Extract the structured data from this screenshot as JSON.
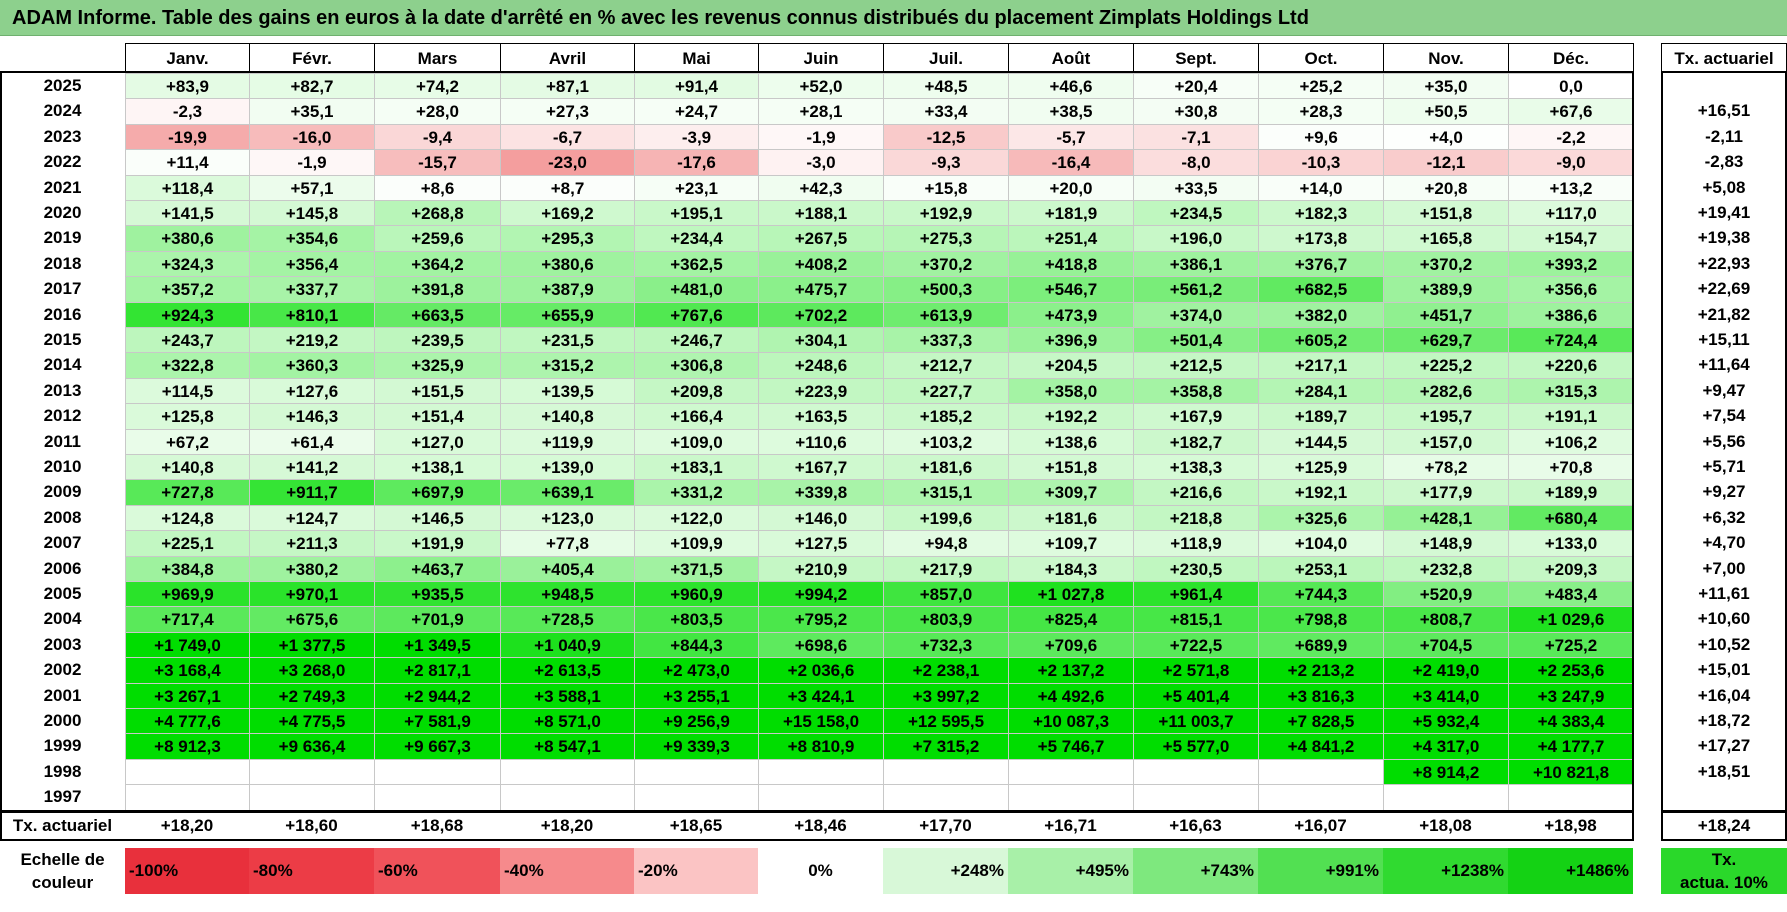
{
  "title": "ADAM Informe. Table des gains en euros à la date d'arrêté en % avec les revenus connus distribués du placement Zimplats Holdings Ltd",
  "months": [
    "Janv.",
    "Févr.",
    "Mars",
    "Avril",
    "Mai",
    "Juin",
    "Juil.",
    "Août",
    "Sept.",
    "Oct.",
    "Nov.",
    "Déc."
  ],
  "annual_header": "Tx. actuariel",
  "rows": [
    {
      "year": "2025",
      "values": [
        "+83,9",
        "+82,7",
        "+74,2",
        "+87,1",
        "+91,4",
        "+52,0",
        "+48,5",
        "+46,6",
        "+20,4",
        "+25,2",
        "+35,0",
        "0,0"
      ],
      "annual": ""
    },
    {
      "year": "2024",
      "values": [
        "-2,3",
        "+35,1",
        "+28,0",
        "+27,3",
        "+24,7",
        "+28,1",
        "+33,4",
        "+38,5",
        "+30,8",
        "+28,3",
        "+50,5",
        "+67,6"
      ],
      "annual": "+16,51"
    },
    {
      "year": "2023",
      "values": [
        "-19,9",
        "-16,0",
        "-9,4",
        "-6,7",
        "-3,9",
        "-1,9",
        "-12,5",
        "-5,7",
        "-7,1",
        "+9,6",
        "+4,0",
        "-2,2"
      ],
      "annual": "-2,11"
    },
    {
      "year": "2022",
      "values": [
        "+11,4",
        "-1,9",
        "-15,7",
        "-23,0",
        "-17,6",
        "-3,0",
        "-9,3",
        "-16,4",
        "-8,0",
        "-10,3",
        "-12,1",
        "-9,0"
      ],
      "annual": "-2,83"
    },
    {
      "year": "2021",
      "values": [
        "+118,4",
        "+57,1",
        "+8,6",
        "+8,7",
        "+23,1",
        "+42,3",
        "+15,8",
        "+20,0",
        "+33,5",
        "+14,0",
        "+20,8",
        "+13,2"
      ],
      "annual": "+5,08"
    },
    {
      "year": "2020",
      "values": [
        "+141,5",
        "+145,8",
        "+268,8",
        "+169,2",
        "+195,1",
        "+188,1",
        "+192,9",
        "+181,9",
        "+234,5",
        "+182,3",
        "+151,8",
        "+117,0"
      ],
      "annual": "+19,41"
    },
    {
      "year": "2019",
      "values": [
        "+380,6",
        "+354,6",
        "+259,6",
        "+295,3",
        "+234,4",
        "+267,5",
        "+275,3",
        "+251,4",
        "+196,0",
        "+173,8",
        "+165,8",
        "+154,7"
      ],
      "annual": "+19,38"
    },
    {
      "year": "2018",
      "values": [
        "+324,3",
        "+356,4",
        "+364,2",
        "+380,6",
        "+362,5",
        "+408,2",
        "+370,2",
        "+418,8",
        "+386,1",
        "+376,7",
        "+370,2",
        "+393,2"
      ],
      "annual": "+22,93"
    },
    {
      "year": "2017",
      "values": [
        "+357,2",
        "+337,7",
        "+391,8",
        "+387,9",
        "+481,0",
        "+475,7",
        "+500,3",
        "+546,7",
        "+561,2",
        "+682,5",
        "+389,9",
        "+356,6"
      ],
      "annual": "+22,69"
    },
    {
      "year": "2016",
      "values": [
        "+924,3",
        "+810,1",
        "+663,5",
        "+655,9",
        "+767,6",
        "+702,2",
        "+613,9",
        "+473,9",
        "+374,0",
        "+382,0",
        "+451,7",
        "+386,6"
      ],
      "annual": "+21,82"
    },
    {
      "year": "2015",
      "values": [
        "+243,7",
        "+219,2",
        "+239,5",
        "+231,5",
        "+246,7",
        "+304,1",
        "+337,3",
        "+396,9",
        "+501,4",
        "+605,2",
        "+629,7",
        "+724,4"
      ],
      "annual": "+15,11"
    },
    {
      "year": "2014",
      "values": [
        "+322,8",
        "+360,3",
        "+325,9",
        "+315,2",
        "+306,8",
        "+248,6",
        "+212,7",
        "+204,5",
        "+212,5",
        "+217,1",
        "+225,2",
        "+220,6"
      ],
      "annual": "+11,64"
    },
    {
      "year": "2013",
      "values": [
        "+114,5",
        "+127,6",
        "+151,5",
        "+139,5",
        "+209,8",
        "+223,9",
        "+227,7",
        "+358,0",
        "+358,8",
        "+284,1",
        "+282,6",
        "+315,3"
      ],
      "annual": "+9,47"
    },
    {
      "year": "2012",
      "values": [
        "+125,8",
        "+146,3",
        "+151,4",
        "+140,8",
        "+166,4",
        "+163,5",
        "+185,2",
        "+192,2",
        "+167,9",
        "+189,7",
        "+195,7",
        "+191,1"
      ],
      "annual": "+7,54"
    },
    {
      "year": "2011",
      "values": [
        "+67,2",
        "+61,4",
        "+127,0",
        "+119,9",
        "+109,0",
        "+110,6",
        "+103,2",
        "+138,6",
        "+182,7",
        "+144,5",
        "+157,0",
        "+106,2"
      ],
      "annual": "+5,56"
    },
    {
      "year": "2010",
      "values": [
        "+140,8",
        "+141,2",
        "+138,1",
        "+139,0",
        "+183,1",
        "+167,7",
        "+181,6",
        "+151,8",
        "+138,3",
        "+125,9",
        "+78,2",
        "+70,8"
      ],
      "annual": "+5,71"
    },
    {
      "year": "2009",
      "values": [
        "+727,8",
        "+911,7",
        "+697,9",
        "+639,1",
        "+331,2",
        "+339,8",
        "+315,1",
        "+309,7",
        "+216,6",
        "+192,1",
        "+177,9",
        "+189,9"
      ],
      "annual": "+9,27"
    },
    {
      "year": "2008",
      "values": [
        "+124,8",
        "+124,7",
        "+146,5",
        "+123,0",
        "+122,0",
        "+146,0",
        "+199,6",
        "+181,6",
        "+218,8",
        "+325,6",
        "+428,1",
        "+680,4"
      ],
      "annual": "+6,32"
    },
    {
      "year": "2007",
      "values": [
        "+225,1",
        "+211,3",
        "+191,9",
        "+77,8",
        "+109,9",
        "+127,5",
        "+94,8",
        "+109,7",
        "+118,9",
        "+104,0",
        "+148,9",
        "+133,0"
      ],
      "annual": "+4,70"
    },
    {
      "year": "2006",
      "values": [
        "+384,8",
        "+380,2",
        "+463,7",
        "+405,4",
        "+371,5",
        "+210,9",
        "+217,9",
        "+184,3",
        "+230,5",
        "+253,1",
        "+232,8",
        "+209,3"
      ],
      "annual": "+7,00"
    },
    {
      "year": "2005",
      "values": [
        "+969,9",
        "+970,1",
        "+935,5",
        "+948,5",
        "+960,9",
        "+994,2",
        "+857,0",
        "+1 027,8",
        "+961,4",
        "+744,3",
        "+520,9",
        "+483,4"
      ],
      "annual": "+11,61"
    },
    {
      "year": "2004",
      "values": [
        "+717,4",
        "+675,6",
        "+701,9",
        "+728,5",
        "+803,5",
        "+795,2",
        "+803,9",
        "+825,4",
        "+815,1",
        "+798,8",
        "+808,7",
        "+1 029,6"
      ],
      "annual": "+10,60"
    },
    {
      "year": "2003",
      "values": [
        "+1 749,0",
        "+1 377,5",
        "+1 349,5",
        "+1 040,9",
        "+844,3",
        "+698,6",
        "+732,3",
        "+709,6",
        "+722,5",
        "+689,9",
        "+704,5",
        "+725,2"
      ],
      "annual": "+10,52"
    },
    {
      "year": "2002",
      "values": [
        "+3 168,4",
        "+3 268,0",
        "+2 817,1",
        "+2 613,5",
        "+2 473,0",
        "+2 036,6",
        "+2 238,1",
        "+2 137,2",
        "+2 571,8",
        "+2 213,2",
        "+2 419,0",
        "+2 253,6"
      ],
      "annual": "+15,01"
    },
    {
      "year": "2001",
      "values": [
        "+3 267,1",
        "+2 749,3",
        "+2 944,2",
        "+3 588,1",
        "+3 255,1",
        "+3 424,1",
        "+3 997,2",
        "+4 492,6",
        "+5 401,4",
        "+3 816,3",
        "+3 414,0",
        "+3 247,9"
      ],
      "annual": "+16,04"
    },
    {
      "year": "2000",
      "values": [
        "+4 777,6",
        "+4 775,5",
        "+7 581,9",
        "+8 571,0",
        "+9 256,9",
        "+15 158,0",
        "+12 595,5",
        "+10 087,3",
        "+11 003,7",
        "+7 828,5",
        "+5 932,4",
        "+4 383,4"
      ],
      "annual": "+18,72"
    },
    {
      "year": "1999",
      "values": [
        "+8 912,3",
        "+9 636,4",
        "+9 667,3",
        "+8 547,1",
        "+9 339,3",
        "+8 810,9",
        "+7 315,2",
        "+5 746,7",
        "+5 577,0",
        "+4 841,2",
        "+4 317,0",
        "+4 177,7"
      ],
      "annual": "+17,27"
    },
    {
      "year": "1998",
      "values": [
        "",
        "",
        "",
        "",
        "",
        "",
        "",
        "",
        "",
        "",
        "+8 914,2",
        "+10 821,8"
      ],
      "annual": "+18,51"
    },
    {
      "year": "1997",
      "values": [
        "",
        "",
        "",
        "",
        "",
        "",
        "",
        "",
        "",
        "",
        "",
        ""
      ],
      "annual": ""
    }
  ],
  "footer": {
    "label": "Tx. actuariel",
    "values": [
      "+18,20",
      "+18,60",
      "+18,68",
      "+18,20",
      "+18,65",
      "+18,46",
      "+17,70",
      "+16,71",
      "+16,63",
      "+16,07",
      "+18,08",
      "+18,98"
    ],
    "annual": "+18,24"
  },
  "scale": {
    "label_line1": "Echelle de",
    "label_line2": "couleur",
    "items": [
      {
        "text": "-100%",
        "color": "#e8303c",
        "align": "left"
      },
      {
        "text": "-80%",
        "color": "#ec3c46",
        "align": "left"
      },
      {
        "text": "-60%",
        "color": "#f0525a",
        "align": "left"
      },
      {
        "text": "-40%",
        "color": "#f68a8c",
        "align": "left"
      },
      {
        "text": "-20%",
        "color": "#fbc4c4",
        "align": "left"
      },
      {
        "text": "0%",
        "color": "#ffffff",
        "align": "center"
      },
      {
        "text": "+248%",
        "color": "#d8f8d8",
        "align": "right"
      },
      {
        "text": "+495%",
        "color": "#a8f0a8",
        "align": "right"
      },
      {
        "text": "+743%",
        "color": "#7ee87e",
        "align": "right"
      },
      {
        "text": "+991%",
        "color": "#52e052",
        "align": "right"
      },
      {
        "text": "+1238%",
        "color": "#30da30",
        "align": "right"
      },
      {
        "text": "+1486%",
        "color": "#14d214",
        "align": "right"
      }
    ],
    "annual_line1": "Tx.",
    "annual_line2": "actua. 10%",
    "annual_color": "#2ad82a"
  },
  "colors": {
    "title_bg": "#8dd08d",
    "negative": "#f08080",
    "positive": "#00dd00"
  }
}
